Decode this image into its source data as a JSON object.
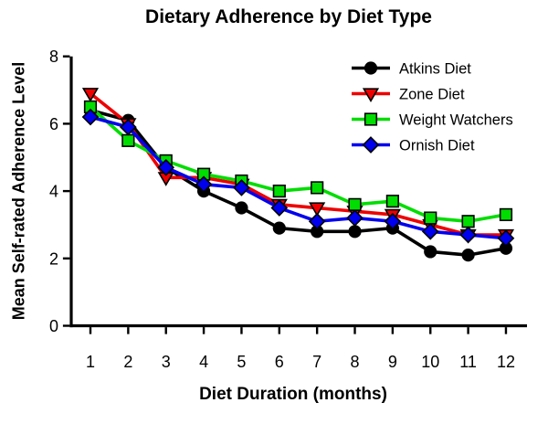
{
  "chart_data": {
    "type": "line",
    "title": "Dietary Adherence by Diet Type",
    "xlabel": "Diet Duration (months)",
    "ylabel": "Mean Self-rated Adherence Level",
    "x": [
      1,
      2,
      3,
      4,
      5,
      6,
      7,
      8,
      9,
      10,
      11,
      12
    ],
    "xticks": [
      1,
      2,
      3,
      4,
      5,
      6,
      7,
      8,
      9,
      10,
      11,
      12
    ],
    "yticks": [
      0,
      2,
      4,
      6,
      8
    ],
    "xlim": [
      0.5,
      12.6
    ],
    "ylim": [
      0,
      8
    ],
    "grid": false,
    "legend_position": "top-right-inside",
    "series": [
      {
        "name": "Atkins Diet",
        "color": "#000000",
        "marker": "circle",
        "values": [
          6.4,
          6.1,
          4.7,
          4.0,
          3.5,
          2.9,
          2.8,
          2.8,
          2.9,
          2.2,
          2.1,
          2.3
        ]
      },
      {
        "name": "Zone Diet",
        "color": "#ee0000",
        "marker": "triangle-down",
        "values": [
          6.9,
          6.0,
          4.4,
          4.4,
          4.2,
          3.6,
          3.5,
          3.4,
          3.3,
          3.0,
          2.7,
          2.7
        ]
      },
      {
        "name": "Weight Watchers",
        "color": "#00dd00",
        "marker": "square",
        "values": [
          6.5,
          5.5,
          4.9,
          4.5,
          4.3,
          4.0,
          4.1,
          3.6,
          3.7,
          3.2,
          3.1,
          3.3
        ]
      },
      {
        "name": "Ornish Diet",
        "color": "#0000ee",
        "marker": "diamond",
        "values": [
          6.2,
          5.9,
          4.7,
          4.2,
          4.1,
          3.5,
          3.1,
          3.2,
          3.1,
          2.8,
          2.7,
          2.6
        ]
      }
    ],
    "axis_color": "#000000",
    "background_color": "#ffffff"
  }
}
